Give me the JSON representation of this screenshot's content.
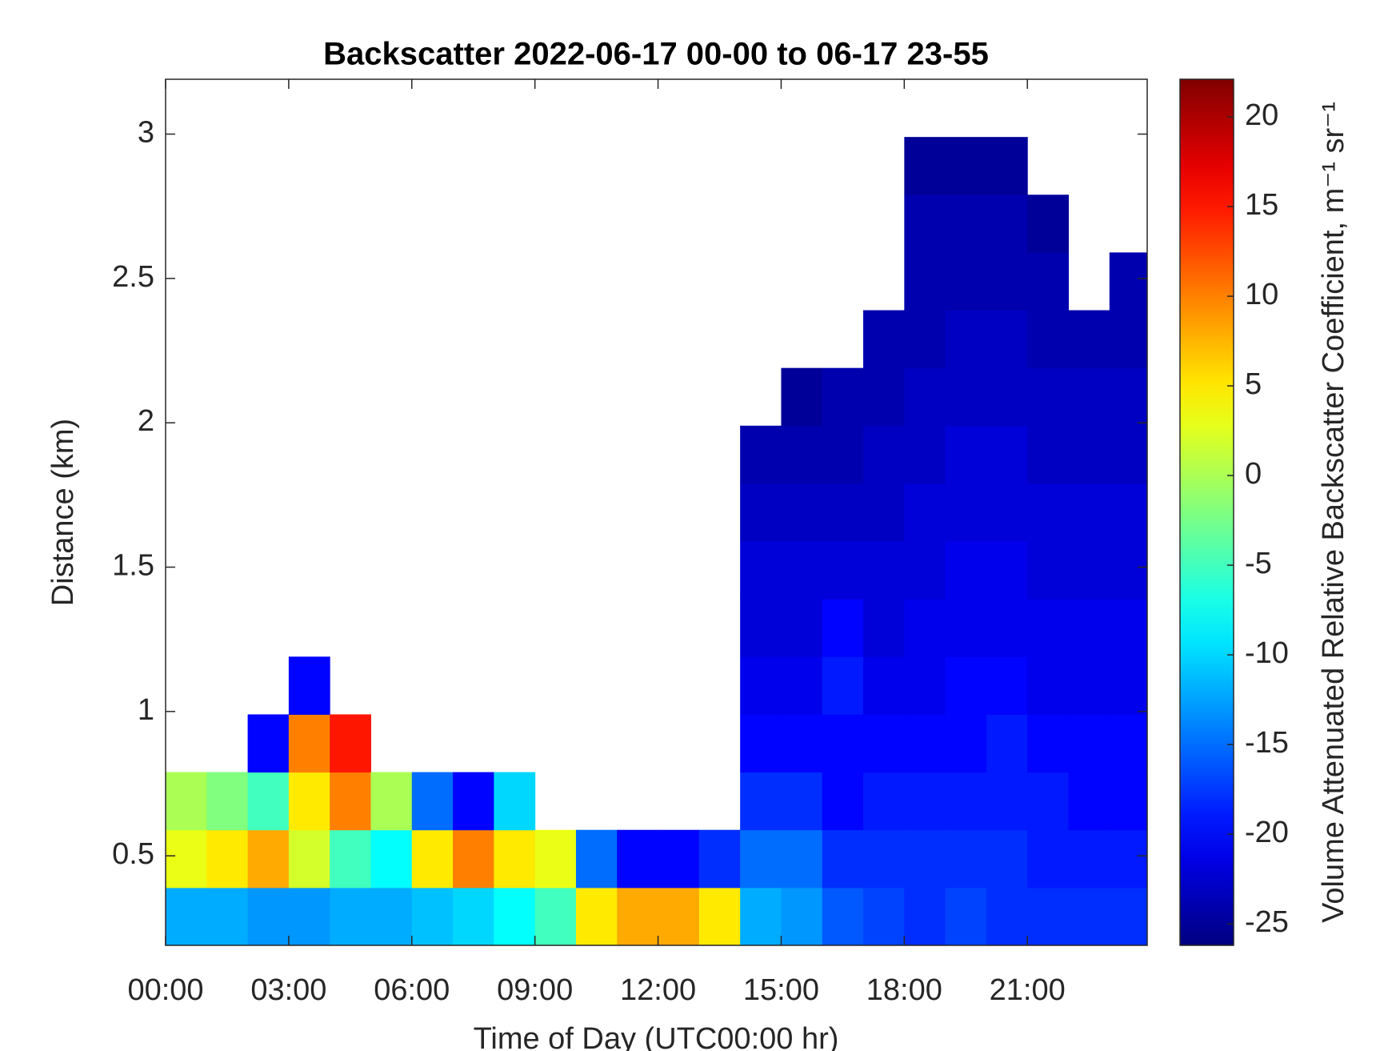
{
  "chart_data": {
    "type": "heatmap",
    "title": "Backscatter 2022-06-17 00-00 to 06-17 23-55",
    "x_label": "Time of Day (UTC00:00 hr)",
    "y_label": "Distance (km)",
    "colorbar_label": "Volume Attenuated Relative Backscatter Coefficient, m⁻¹ sr⁻¹",
    "colormap": "jet",
    "xlim": [
      0,
      23.92
    ],
    "xticks": [
      {
        "value": 0,
        "label": "00:00"
      },
      {
        "value": 3,
        "label": "03:00"
      },
      {
        "value": 6,
        "label": "06:00"
      },
      {
        "value": 9,
        "label": "09:00"
      },
      {
        "value": 12,
        "label": "12:00"
      },
      {
        "value": 15,
        "label": "15:00"
      },
      {
        "value": 18,
        "label": "18:00"
      },
      {
        "value": 21,
        "label": "21:00"
      }
    ],
    "ylim": [
      0.19,
      3.19
    ],
    "yticks": [
      0.5,
      1,
      1.5,
      2,
      2.5,
      3
    ],
    "clim": [
      -26.2,
      22.1
    ],
    "cticks": [
      -25,
      -20,
      -15,
      -10,
      -5,
      0,
      5,
      10,
      15,
      20
    ],
    "x_edges": [
      0,
      1,
      2,
      3,
      4,
      5,
      6,
      7,
      8,
      9,
      10,
      11,
      12,
      13,
      14,
      15,
      16,
      17,
      18,
      19,
      20,
      21,
      22,
      23,
      23.92
    ],
    "y_edges": [
      0.19,
      0.39,
      0.59,
      0.79,
      0.99,
      1.19,
      1.39,
      1.59,
      1.79,
      1.99,
      2.19,
      2.39,
      2.59,
      2.79,
      2.99,
      3.19
    ],
    "z": [
      [
        -12,
        3,
        0,
        null,
        null,
        null,
        null,
        null,
        null,
        null,
        null,
        null,
        null,
        null,
        null
      ],
      [
        -12,
        5,
        -2,
        null,
        null,
        null,
        null,
        null,
        null,
        null,
        null,
        null,
        null,
        null,
        null
      ],
      [
        -13,
        8,
        -5,
        -20,
        null,
        null,
        null,
        null,
        null,
        null,
        null,
        null,
        null,
        null,
        null
      ],
      [
        -13,
        2,
        5,
        10,
        -20,
        null,
        null,
        null,
        null,
        null,
        null,
        null,
        null,
        null,
        null
      ],
      [
        -12,
        -5,
        10,
        15,
        null,
        null,
        null,
        null,
        null,
        null,
        null,
        null,
        null,
        null,
        null
      ],
      [
        -12,
        -8,
        0,
        null,
        null,
        null,
        null,
        null,
        null,
        null,
        null,
        null,
        null,
        null,
        null
      ],
      [
        -11,
        5,
        -15,
        null,
        null,
        null,
        null,
        null,
        null,
        null,
        null,
        null,
        null,
        null,
        null
      ],
      [
        -10,
        10,
        -20,
        null,
        null,
        null,
        null,
        null,
        null,
        null,
        null,
        null,
        null,
        null,
        null
      ],
      [
        -8,
        5,
        -10,
        null,
        null,
        null,
        null,
        null,
        null,
        null,
        null,
        null,
        null,
        null,
        null
      ],
      [
        -5,
        3,
        null,
        null,
        null,
        null,
        null,
        null,
        null,
        null,
        null,
        null,
        null,
        null,
        null
      ],
      [
        5,
        -15,
        null,
        null,
        null,
        null,
        null,
        null,
        null,
        null,
        null,
        null,
        null,
        null,
        null
      ],
      [
        8,
        -20,
        null,
        null,
        null,
        null,
        null,
        null,
        null,
        null,
        null,
        null,
        null,
        null,
        null
      ],
      [
        8,
        -20,
        null,
        null,
        null,
        null,
        null,
        null,
        null,
        null,
        null,
        null,
        null,
        null,
        null
      ],
      [
        5,
        -18,
        null,
        null,
        null,
        null,
        null,
        null,
        null,
        null,
        null,
        null,
        null,
        null,
        null
      ],
      [
        -12,
        -15,
        -18,
        -20,
        -21,
        -22,
        -22,
        -23,
        -24,
        null,
        null,
        null,
        null,
        null,
        null
      ],
      [
        -13,
        -15,
        -18,
        -20,
        -21,
        -22,
        -22,
        -23,
        -24,
        -25,
        null,
        null,
        null,
        null,
        null
      ],
      [
        -16,
        -18,
        -20,
        -20,
        -19,
        -20,
        -22,
        -23,
        -24,
        -24,
        null,
        null,
        null,
        null,
        null
      ],
      [
        -17,
        -18,
        -19,
        -20,
        -21,
        -22,
        -22,
        -23,
        -23,
        -24,
        -24,
        null,
        null,
        null,
        null
      ],
      [
        -18,
        -18,
        -19,
        -20,
        -21,
        -21,
        -22,
        -22,
        -23,
        -23,
        -24,
        -24,
        -24,
        -25,
        null
      ],
      [
        -17,
        -18,
        -19,
        -20,
        -20,
        -21,
        -21,
        -22,
        -22,
        -23,
        -23,
        -24,
        -24,
        -25,
        null
      ],
      [
        -18,
        -18,
        -19,
        -19,
        -20,
        -21,
        -21,
        -22,
        -22,
        -23,
        -23,
        -24,
        -24,
        -25,
        null
      ],
      [
        -18,
        -19,
        -19,
        -20,
        -21,
        -21,
        -22,
        -22,
        -23,
        -23,
        -24,
        -24,
        -25,
        null,
        null
      ],
      [
        -18,
        -19,
        -20,
        -20,
        -21,
        -21,
        -22,
        -22,
        -23,
        -23,
        -24,
        null,
        null,
        null,
        null
      ],
      [
        -18,
        -19,
        -20,
        -20,
        -21,
        -21,
        -22,
        -22,
        -23,
        -23,
        -24,
        -24,
        null,
        null,
        null
      ]
    ]
  }
}
